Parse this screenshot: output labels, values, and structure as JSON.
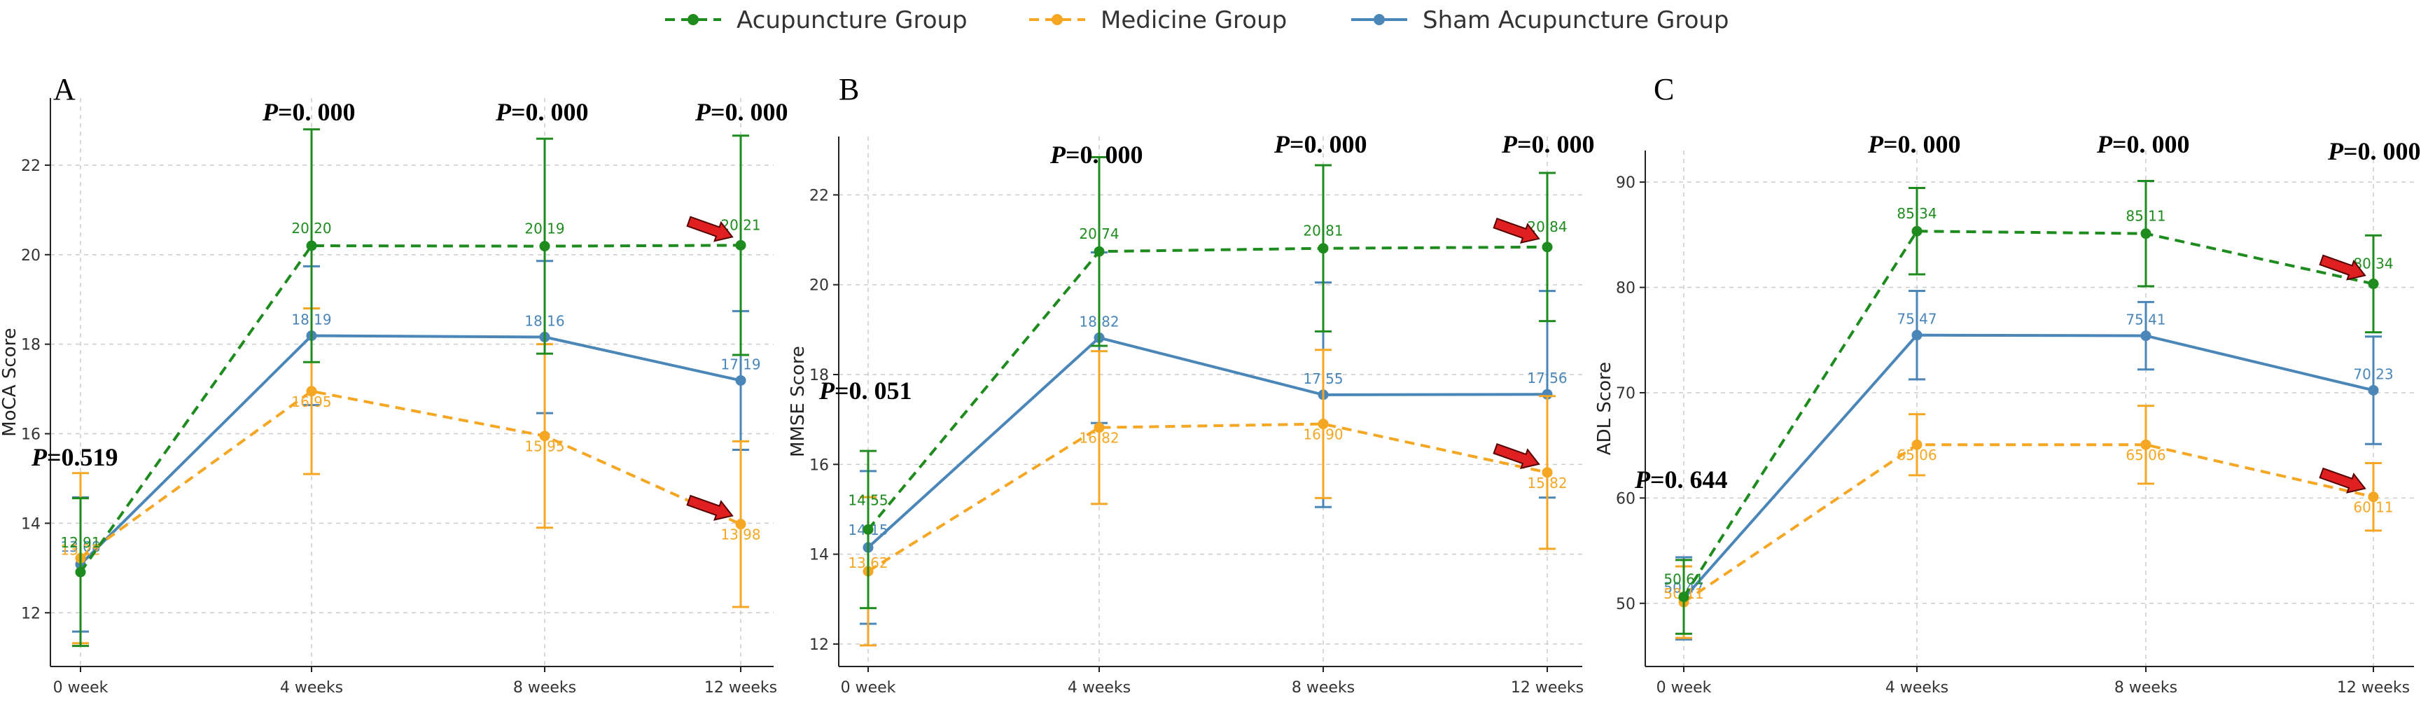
{
  "colors": {
    "acupuncture": "#1e8b1e",
    "medicine": "#f5a623",
    "sham": "#4a86b8",
    "arrow": "#e02020"
  },
  "legend": {
    "acupuncture": "Acupuncture Group",
    "medicine": "Medicine Group",
    "sham": "Sham Acupuncture Group"
  },
  "chart_data": [
    {
      "type": "line",
      "panel": "A",
      "categories": [
        "0 week",
        "4 weeks",
        "8 weeks",
        "12 weeks"
      ],
      "ylabel": "MoCA Score",
      "ylim": [
        10.8,
        23.5
      ],
      "yticks": [
        12,
        14,
        16,
        18,
        20,
        22
      ],
      "grid": true,
      "p_values": [
        {
          "label": "P",
          "value": "=0.519",
          "x_index": 0
        },
        {
          "label": "P",
          "value": "=0. 000",
          "x_index": 1
        },
        {
          "label": "P",
          "value": "=0. 000",
          "x_index": 2
        },
        {
          "label": "P",
          "value": "=0. 000",
          "x_index": 3
        }
      ],
      "arrows_on": [
        "acupuncture",
        "medicine"
      ],
      "series": [
        {
          "key": "acupuncture",
          "name": "Acupuncture Group",
          "style": "dashed",
          "values": [
            12.91,
            20.2,
            20.19,
            20.21
          ],
          "labels": [
            "12.91",
            "20.20",
            "20.19",
            "20.21"
          ],
          "err": [
            1.65,
            2.6,
            2.4,
            2.45
          ]
        },
        {
          "key": "medicine",
          "name": "Medicine Group",
          "style": "dashed",
          "values": [
            13.22,
            16.95,
            15.95,
            13.98
          ],
          "labels": [
            "13.22",
            "16.95",
            "15.95",
            "13.98"
          ],
          "err": [
            1.9,
            1.85,
            2.05,
            1.85
          ]
        },
        {
          "key": "sham",
          "name": "Sham Acupuncture Group",
          "style": "solid",
          "values": [
            13.08,
            18.19,
            18.16,
            17.19
          ],
          "labels": [
            "13.08",
            "18.19",
            "18.16",
            "17.19"
          ],
          "err": [
            1.5,
            1.55,
            1.7,
            1.55
          ]
        }
      ]
    },
    {
      "type": "line",
      "panel": "B",
      "categories": [
        "0 week",
        "4 weeks",
        "8 weeks",
        "12 weeks"
      ],
      "ylabel": "MMSE Score",
      "ylim": [
        11.5,
        23.3
      ],
      "yticks": [
        12,
        14,
        16,
        18,
        20,
        22
      ],
      "grid": true,
      "p_values": [
        {
          "label": "P",
          "value": "=0. 051",
          "x_index": 0
        },
        {
          "label": "P",
          "value": "=0. 000",
          "x_index": 1
        },
        {
          "label": "P",
          "value": "=0. 000",
          "x_index": 2
        },
        {
          "label": "P",
          "value": "=0. 000",
          "x_index": 3
        }
      ],
      "arrows_on": [
        "acupuncture",
        "medicine"
      ],
      "series": [
        {
          "key": "acupuncture",
          "name": "Acupuncture Group",
          "style": "dashed",
          "values": [
            14.55,
            20.74,
            20.81,
            20.84
          ],
          "labels": [
            "14.55",
            "20.74",
            "20.81",
            "20.84"
          ],
          "err": [
            1.75,
            2.1,
            1.85,
            1.65
          ]
        },
        {
          "key": "medicine",
          "name": "Medicine Group",
          "style": "dashed",
          "values": [
            13.62,
            16.82,
            16.9,
            15.82
          ],
          "labels": [
            "13.62",
            "16.82",
            "16.90",
            "15.82"
          ],
          "err": [
            1.65,
            1.7,
            1.65,
            1.7
          ]
        },
        {
          "key": "sham",
          "name": "Sham Acupuncture Group",
          "style": "solid",
          "values": [
            14.15,
            18.82,
            17.55,
            17.56
          ],
          "labels": [
            "14.15",
            "18.82",
            "17.55",
            "17.56"
          ],
          "err": [
            1.7,
            1.9,
            2.5,
            2.3
          ]
        }
      ]
    },
    {
      "type": "line",
      "panel": "C",
      "categories": [
        "0 week",
        "4 weeks",
        "8 weeks",
        "12 weeks"
      ],
      "ylabel": "ADL Score",
      "ylim": [
        44,
        93
      ],
      "yticks": [
        50,
        60,
        70,
        80,
        90
      ],
      "grid": true,
      "p_values": [
        {
          "label": "P",
          "value": "=0. 644",
          "x_index": 0
        },
        {
          "label": "P",
          "value": "=0. 000",
          "x_index": 1
        },
        {
          "label": "P",
          "value": "=0. 000",
          "x_index": 2
        },
        {
          "label": "P",
          "value": "=0. 000",
          "x_index": 3
        }
      ],
      "arrows_on": [
        "acupuncture",
        "medicine"
      ],
      "series": [
        {
          "key": "acupuncture",
          "name": "Acupuncture Group",
          "style": "dashed",
          "values": [
            50.61,
            85.34,
            85.11,
            80.34
          ],
          "labels": [
            "50.61",
            "85.34",
            "85.11",
            "80.34"
          ],
          "err": [
            3.5,
            4.1,
            5.0,
            4.6
          ]
        },
        {
          "key": "medicine",
          "name": "Medicine Group",
          "style": "dashed",
          "values": [
            50.11,
            65.06,
            65.06,
            60.11
          ],
          "labels": [
            "50.11",
            "65.06",
            "65.06",
            "60.11"
          ],
          "err": [
            3.4,
            2.9,
            3.7,
            3.2
          ]
        },
        {
          "key": "sham",
          "name": "Sham Acupuncture Group",
          "style": "solid",
          "values": [
            50.47,
            75.47,
            75.41,
            70.23
          ],
          "labels": [
            "50.47",
            "75.47",
            "75.41",
            "70.23"
          ],
          "err": [
            3.9,
            4.2,
            3.2,
            5.1
          ]
        }
      ]
    }
  ]
}
